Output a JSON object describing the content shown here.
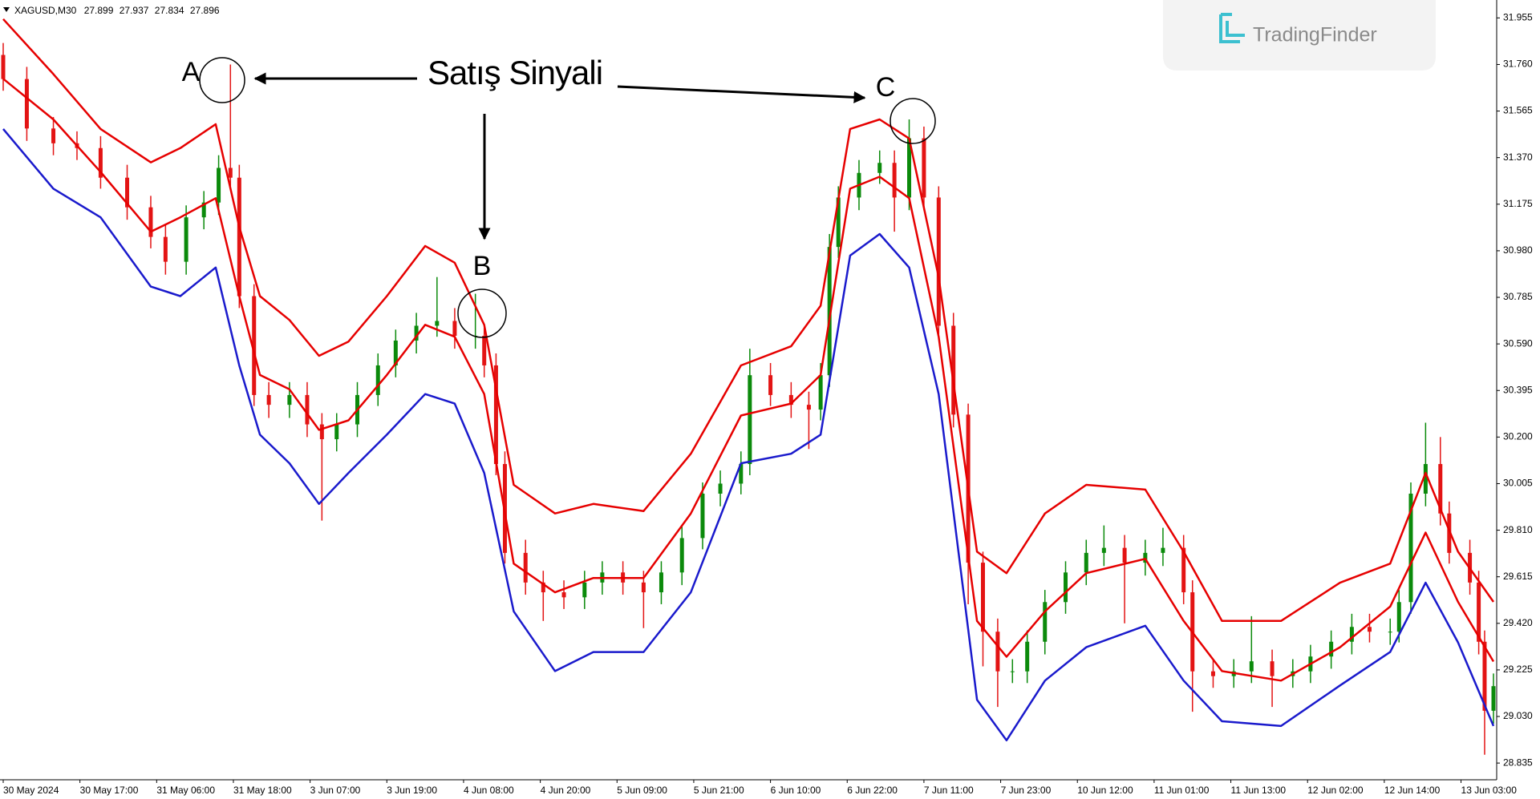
{
  "chart_data": {
    "type": "candlestick",
    "symbol": "XAGUSD,M30",
    "header_ohlc": [
      27.899,
      27.937,
      27.834,
      27.896
    ],
    "annotation": "Satış Sinyali",
    "points": [
      "A",
      "B",
      "C"
    ],
    "watermark": "TradingFinder",
    "bull_color": "#0b8a0b",
    "bear_color": "#e31414",
    "xlim": [
      0,
      505
    ],
    "xticks": [
      {
        "value": 0,
        "label": "30 May 2024"
      },
      {
        "value": 26,
        "label": "30 May 17:00"
      },
      {
        "value": 52,
        "label": "31 May 06:00"
      },
      {
        "value": 78,
        "label": "31 May 18:00"
      },
      {
        "value": 104,
        "label": "3 Jun 07:00"
      },
      {
        "value": 130,
        "label": "3 Jun 19:00"
      },
      {
        "value": 156,
        "label": "4 Jun 08:00"
      },
      {
        "value": 182,
        "label": "4 Jun 20:00"
      },
      {
        "value": 208,
        "label": "5 Jun 09:00"
      },
      {
        "value": 234,
        "label": "5 Jun 21:00"
      },
      {
        "value": 260,
        "label": "6 Jun 10:00"
      },
      {
        "value": 286,
        "label": "6 Jun 22:00"
      },
      {
        "value": 312,
        "label": "7 Jun 11:00"
      },
      {
        "value": 338,
        "label": "7 Jun 23:00"
      },
      {
        "value": 364,
        "label": "10 Jun 12:00"
      },
      {
        "value": 390,
        "label": "11 Jun 01:00"
      },
      {
        "value": 416,
        "label": "11 Jun 13:00"
      },
      {
        "value": 442,
        "label": "12 Jun 02:00"
      },
      {
        "value": 468,
        "label": "12 Jun 14:00"
      },
      {
        "value": 494,
        "label": "13 Jun 03:00"
      }
    ],
    "ylim": [
      28.765,
      32.03
    ],
    "yticks": [
      31.955,
      {
        "value": 31.76,
        "label": "31.760"
      },
      31.565,
      {
        "value": 31.37,
        "label": "31.370"
      },
      31.175,
      {
        "value": 30.98,
        "label": "30.980"
      },
      30.785,
      {
        "value": 30.59,
        "label": "30.590"
      },
      30.395,
      {
        "value": 30.2,
        "label": "30.200"
      },
      30.005,
      {
        "value": 29.81,
        "label": "29.810"
      },
      29.615,
      {
        "value": 29.42,
        "label": "29.420"
      },
      29.225,
      {
        "value": 29.03,
        "label": "29.030"
      },
      28.835
    ],
    "x": [
      0,
      8,
      17,
      25,
      33,
      42,
      50,
      55,
      62,
      68,
      73,
      77,
      80,
      85,
      90,
      97,
      103,
      108,
      113,
      120,
      127,
      133,
      140,
      147,
      153,
      160,
      163,
      167,
      170,
      177,
      183,
      190,
      197,
      203,
      210,
      217,
      223,
      230,
      237,
      243,
      250,
      253,
      260,
      267,
      273,
      277,
      280,
      283,
      290,
      297,
      302,
      307,
      312,
      317,
      322,
      327,
      332,
      337,
      342,
      347,
      353,
      360,
      367,
      373,
      380,
      387,
      393,
      400,
      403,
      410,
      417,
      423,
      430,
      437,
      443,
      450,
      457,
      463,
      470,
      473,
      477,
      482,
      487,
      490,
      497,
      500,
      502,
      505
    ],
    "open": [
      31.8,
      31.699,
      31.492,
      31.43,
      31.41,
      31.286,
      31.162,
      31.038,
      30.934,
      31.12,
      31.182,
      31.327,
      31.286,
      30.79,
      30.376,
      30.335,
      30.376,
      30.253,
      30.191,
      30.253,
      30.376,
      30.5,
      30.604,
      30.666,
      30.686,
      30.624,
      30.624,
      30.5,
      30.087,
      29.715,
      29.591,
      29.55,
      29.529,
      29.591,
      29.633,
      29.591,
      29.55,
      29.633,
      29.777,
      29.963,
      30.005,
      30.087,
      30.459,
      30.376,
      30.335,
      30.315,
      30.459,
      30.996,
      31.203,
      31.306,
      31.348,
      31.203,
      31.451,
      31.203,
      30.666,
      30.294,
      29.674,
      29.385,
      29.219,
      29.219,
      29.343,
      29.509,
      29.633,
      29.715,
      29.736,
      29.674,
      29.715,
      29.736,
      29.55,
      29.219,
      29.199,
      29.219,
      29.261,
      29.199,
      29.219,
      29.281,
      29.343,
      29.405,
      29.385,
      29.385,
      29.509,
      29.963,
      30.087,
      29.88,
      29.715,
      29.591,
      29.343,
      29.054
    ],
    "high": [
      31.85,
      31.75,
      31.54,
      31.48,
      31.46,
      31.34,
      31.21,
      31.09,
      31.17,
      31.23,
      31.38,
      31.76,
      31.34,
      30.84,
      30.43,
      30.43,
      30.43,
      30.3,
      30.3,
      30.43,
      30.55,
      30.65,
      30.72,
      30.87,
      30.74,
      30.8,
      30.67,
      30.55,
      30.14,
      29.77,
      29.64,
      29.6,
      29.64,
      29.68,
      29.68,
      29.64,
      29.68,
      29.83,
      30.01,
      30.06,
      30.14,
      30.57,
      30.51,
      30.43,
      30.39,
      30.51,
      31.05,
      31.25,
      31.36,
      31.4,
      31.4,
      31.53,
      31.5,
      31.25,
      30.72,
      30.34,
      29.72,
      29.44,
      29.27,
      29.39,
      29.56,
      29.68,
      29.77,
      29.83,
      29.79,
      29.77,
      29.82,
      29.79,
      29.6,
      29.27,
      29.27,
      29.45,
      29.31,
      29.27,
      29.33,
      29.39,
      29.46,
      29.46,
      29.44,
      29.56,
      30.01,
      30.26,
      30.2,
      29.93,
      29.77,
      29.64,
      29.39,
      29.21
    ],
    "low": [
      31.65,
      31.44,
      31.38,
      31.36,
      31.24,
      31.11,
      30.99,
      30.88,
      30.88,
      31.07,
      31.13,
      31.24,
      30.74,
      30.33,
      30.28,
      30.28,
      30.2,
      29.85,
      30.14,
      30.2,
      30.33,
      30.45,
      30.55,
      30.62,
      30.57,
      30.57,
      30.45,
      30.04,
      29.67,
      29.54,
      29.43,
      29.48,
      29.48,
      29.54,
      29.54,
      29.4,
      29.5,
      29.58,
      29.73,
      29.91,
      29.96,
      30.04,
      30.33,
      30.28,
      30.15,
      30.27,
      30.41,
      30.95,
      31.15,
      31.26,
      31.06,
      31.15,
      31.15,
      30.62,
      30.24,
      29.5,
      29.24,
      29.07,
      29.17,
      29.17,
      29.29,
      29.46,
      29.58,
      29.66,
      29.42,
      29.62,
      29.66,
      29.5,
      29.05,
      29.15,
      29.15,
      29.17,
      29.07,
      29.15,
      29.17,
      29.23,
      29.29,
      29.34,
      29.33,
      29.34,
      29.46,
      29.91,
      29.83,
      29.67,
      29.54,
      29.29,
      28.87,
      29.0
    ],
    "close": [
      31.699,
      31.492,
      31.43,
      31.41,
      31.286,
      31.162,
      31.038,
      30.934,
      31.12,
      31.182,
      31.327,
      31.286,
      30.79,
      30.376,
      30.335,
      30.376,
      30.253,
      30.191,
      30.253,
      30.376,
      30.5,
      30.604,
      30.666,
      30.686,
      30.624,
      30.624,
      30.5,
      30.087,
      29.715,
      29.591,
      29.55,
      29.529,
      29.591,
      29.633,
      29.591,
      29.55,
      29.633,
      29.777,
      29.963,
      30.005,
      30.087,
      30.459,
      30.376,
      30.335,
      30.315,
      30.459,
      30.996,
      31.203,
      31.306,
      31.348,
      31.203,
      31.451,
      31.203,
      30.666,
      30.294,
      29.674,
      29.385,
      29.219,
      29.219,
      29.343,
      29.509,
      29.633,
      29.715,
      29.736,
      29.674,
      29.715,
      29.736,
      29.55,
      29.219,
      29.199,
      29.219,
      29.261,
      29.199,
      29.219,
      29.281,
      29.343,
      29.405,
      29.385,
      29.385,
      29.509,
      29.963,
      30.087,
      29.88,
      29.715,
      29.591,
      29.343,
      29.054,
      29.157
    ],
    "bands": {
      "x": [
        0,
        17,
        33,
        50,
        60,
        72,
        80,
        87,
        97,
        107,
        117,
        130,
        143,
        153,
        163,
        173,
        187,
        200,
        217,
        233,
        250,
        267,
        277,
        287,
        297,
        307,
        317,
        330,
        340,
        353,
        367,
        387,
        400,
        413,
        433,
        453,
        470,
        482,
        493,
        505
      ],
      "series": [
        {
          "color": "#e60000",
          "values": [
            31.95,
            31.72,
            31.49,
            31.35,
            31.41,
            31.51,
            31.08,
            30.79,
            30.69,
            30.54,
            30.6,
            30.79,
            31.0,
            30.93,
            30.67,
            30.0,
            29.88,
            29.92,
            29.89,
            30.13,
            30.5,
            30.58,
            30.75,
            31.49,
            31.53,
            31.45,
            30.87,
            29.72,
            29.63,
            29.88,
            30.0,
            29.98,
            29.72,
            29.43,
            29.43,
            29.59,
            29.67,
            30.05,
            29.72,
            29.51
          ]
        },
        {
          "color": "#e60000",
          "values": [
            31.7,
            31.53,
            31.31,
            31.06,
            31.12,
            31.2,
            30.79,
            30.46,
            30.4,
            30.23,
            30.27,
            30.46,
            30.67,
            30.62,
            30.38,
            29.67,
            29.55,
            29.61,
            29.61,
            29.88,
            30.29,
            30.34,
            30.46,
            31.24,
            31.29,
            31.2,
            30.62,
            29.43,
            29.28,
            29.47,
            29.63,
            29.69,
            29.43,
            29.22,
            29.18,
            29.32,
            29.49,
            29.8,
            29.51,
            29.26
          ]
        },
        {
          "color": "#1a1acc",
          "values": [
            31.49,
            31.24,
            31.12,
            30.83,
            30.79,
            30.91,
            30.5,
            30.21,
            30.09,
            29.92,
            30.05,
            30.21,
            30.38,
            30.34,
            30.05,
            29.47,
            29.22,
            29.3,
            29.3,
            29.55,
            30.09,
            30.13,
            30.21,
            30.96,
            31.05,
            30.91,
            30.38,
            29.1,
            28.93,
            29.18,
            29.32,
            29.41,
            29.18,
            29.01,
            28.99,
            29.16,
            29.3,
            29.59,
            29.34,
            28.99
          ]
        }
      ]
    }
  }
}
